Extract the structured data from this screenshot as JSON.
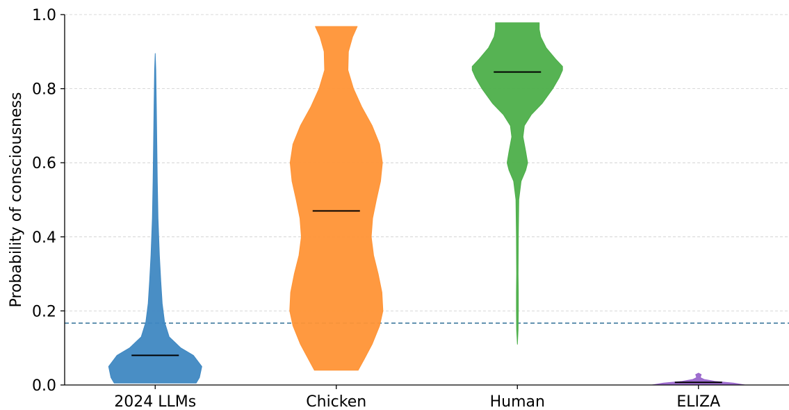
{
  "chart_data": {
    "type": "violin",
    "title": "",
    "xlabel": "",
    "ylabel": "Probability of consciousness",
    "ylim": [
      0,
      1
    ],
    "yticks": [
      "0.0",
      "0.2",
      "0.4",
      "0.6",
      "0.8",
      "1.0"
    ],
    "grid": "horizontal dashed",
    "reference_line": {
      "y": 0.167,
      "color": "#2e6f96",
      "style": "dashed"
    },
    "categories": [
      "2024 LLMs",
      "Chicken",
      "Human",
      "ELIZA"
    ],
    "series": [
      {
        "category": "2024 LLMs",
        "color": "#3f88c2",
        "median": 0.08,
        "min": 0.005,
        "max": 0.895,
        "profile": [
          [
            0.005,
            0.88
          ],
          [
            0.02,
            0.95
          ],
          [
            0.05,
            1.0
          ],
          [
            0.08,
            0.82
          ],
          [
            0.1,
            0.55
          ],
          [
            0.13,
            0.3
          ],
          [
            0.17,
            0.2
          ],
          [
            0.22,
            0.15
          ],
          [
            0.28,
            0.12
          ],
          [
            0.35,
            0.09
          ],
          [
            0.45,
            0.06
          ],
          [
            0.55,
            0.045
          ],
          [
            0.65,
            0.035
          ],
          [
            0.75,
            0.025
          ],
          [
            0.85,
            0.012
          ],
          [
            0.895,
            0.0
          ]
        ]
      },
      {
        "category": "Chicken",
        "color": "#ff9436",
        "median": 0.47,
        "min": 0.04,
        "max": 0.968,
        "profile": [
          [
            0.04,
            0.47
          ],
          [
            0.07,
            0.6
          ],
          [
            0.11,
            0.77
          ],
          [
            0.16,
            0.93
          ],
          [
            0.2,
            1.0
          ],
          [
            0.25,
            0.98
          ],
          [
            0.3,
            0.9
          ],
          [
            0.35,
            0.8
          ],
          [
            0.4,
            0.75
          ],
          [
            0.45,
            0.78
          ],
          [
            0.5,
            0.86
          ],
          [
            0.55,
            0.95
          ],
          [
            0.6,
            0.99
          ],
          [
            0.65,
            0.93
          ],
          [
            0.7,
            0.77
          ],
          [
            0.75,
            0.55
          ],
          [
            0.8,
            0.37
          ],
          [
            0.85,
            0.25
          ],
          [
            0.9,
            0.26
          ],
          [
            0.94,
            0.35
          ],
          [
            0.968,
            0.45
          ]
        ]
      },
      {
        "category": "Human",
        "color": "#4daf4a",
        "median": 0.845,
        "min": 0.11,
        "max": 0.978,
        "profile": [
          [
            0.11,
            0.0
          ],
          [
            0.15,
            0.015
          ],
          [
            0.2,
            0.02
          ],
          [
            0.25,
            0.02
          ],
          [
            0.3,
            0.015
          ],
          [
            0.4,
            0.02
          ],
          [
            0.5,
            0.03
          ],
          [
            0.55,
            0.08
          ],
          [
            0.58,
            0.18
          ],
          [
            0.6,
            0.22
          ],
          [
            0.63,
            0.18
          ],
          [
            0.67,
            0.12
          ],
          [
            0.7,
            0.15
          ],
          [
            0.73,
            0.3
          ],
          [
            0.76,
            0.53
          ],
          [
            0.8,
            0.76
          ],
          [
            0.83,
            0.9
          ],
          [
            0.85,
            0.97
          ],
          [
            0.86,
            0.97
          ],
          [
            0.88,
            0.82
          ],
          [
            0.91,
            0.62
          ],
          [
            0.94,
            0.5
          ],
          [
            0.96,
            0.47
          ],
          [
            0.978,
            0.47
          ]
        ]
      },
      {
        "category": "ELIZA",
        "color": "#9966cc",
        "median": 0.007,
        "min": 0.0,
        "max": 0.032,
        "profile": [
          [
            0.0,
            1.0
          ],
          [
            0.005,
            0.75
          ],
          [
            0.01,
            0.35
          ],
          [
            0.015,
            0.12
          ],
          [
            0.02,
            0.04
          ],
          [
            0.025,
            0.05
          ],
          [
            0.028,
            0.06
          ],
          [
            0.032,
            0.0
          ]
        ]
      }
    ]
  }
}
